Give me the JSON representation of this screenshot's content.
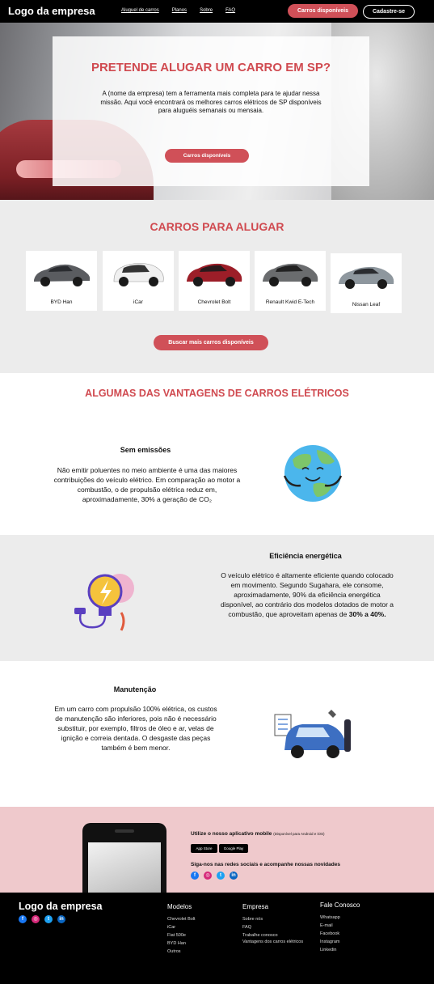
{
  "nav": {
    "logo": "Logo da empresa",
    "links": [
      "Aluguel de carros",
      "Planos",
      "Sobre",
      "FAQ"
    ],
    "cta_available": "Carros disponíveis",
    "cta_signup": "Cadastre-se"
  },
  "hero": {
    "title": "PRETENDE ALUGAR UM CARRO EM SP?",
    "text": "A (nome da empresa) tem a ferramenta mais completa para te ajudar nessa missão. Aqui você encontrará os melhores carros elétricos de SP disponíveis para aluguéis semanais ou mensaia.",
    "button": "Carros disponíveis"
  },
  "cars": {
    "title": "CARROS PARA ALUGAR",
    "items": [
      {
        "name": "BYD Han",
        "color": "#5a5c60"
      },
      {
        "name": "iCar",
        "color": "#f2f2f2"
      },
      {
        "name": "Chevrolet Bolt",
        "color": "#9c1e28"
      },
      {
        "name": "Renault Kwid E-Tech",
        "color": "#6a6c6e"
      },
      {
        "name": "Nissan Leaf",
        "color": "#8e979e"
      }
    ],
    "more_button": "Buscar mais carros disponíveis"
  },
  "advantages": {
    "title": "ALGUMAS DAS VANTAGENS DE CARROS ELÉTRICOS",
    "items": [
      {
        "title": "Sem emissões",
        "text": "Não emitir poluentes no meio ambiente é uma das maiores contribuições do veículo elétrico. Em comparação ao motor a combustão, o de propulsão elétrica reduz em, aproximadamente, 30% a geração de CO₂",
        "icon": "earth-icon"
      },
      {
        "title": "Eficiência energética",
        "text_main": "O veículo elétrico é altamente eficiente quando colocado em movimento. Segundo Sugahara, ele consome, aproximadamente, 90% da eficiência energética disponível, ao contrário dos modelos dotados de motor a combustão, que aproveitam apenas de",
        "text_bold": "30% a 40%.",
        "icon": "lightbulb-plug-icon"
      },
      {
        "title": "Manutenção",
        "text": "Em um carro com propulsão 100% elétrica, os custos de manutenção são inferiores, pois não é necessário substituir, por exemplo, filtros de óleo e ar, velas de ignição e correia dentada. O desgaste das peças também é bem menor.",
        "icon": "car-repair-icon"
      }
    ]
  },
  "app": {
    "title": "Utilize o nosso aplicativo mobile",
    "subtitle": "(Disponível para Android e iOS)",
    "app_store": "App Store",
    "google_play": "Google Play",
    "social_title": "Siga-nos nas redes sociais e acompanhe nossas novidades"
  },
  "footer": {
    "logo": "Logo da empresa",
    "columns": [
      {
        "title": "Modelos",
        "items": [
          "Chevrolet Bolt",
          "iCar",
          "Fiat 500e",
          "BYD Han",
          "Outros"
        ]
      },
      {
        "title": "Empresa",
        "items": [
          "Sobre nós",
          "FAQ",
          "Trabalhe conosco",
          "Vantagens dos carros elétricos"
        ]
      },
      {
        "title": "Fale Conosco",
        "items": [
          "Whatsapp",
          "E-mail",
          "Facebook",
          "Instagram",
          "Linkedin"
        ]
      }
    ]
  },
  "colors": {
    "accent": "#d05058",
    "panel": "#ececec",
    "app_bg": "#efc9cc"
  }
}
